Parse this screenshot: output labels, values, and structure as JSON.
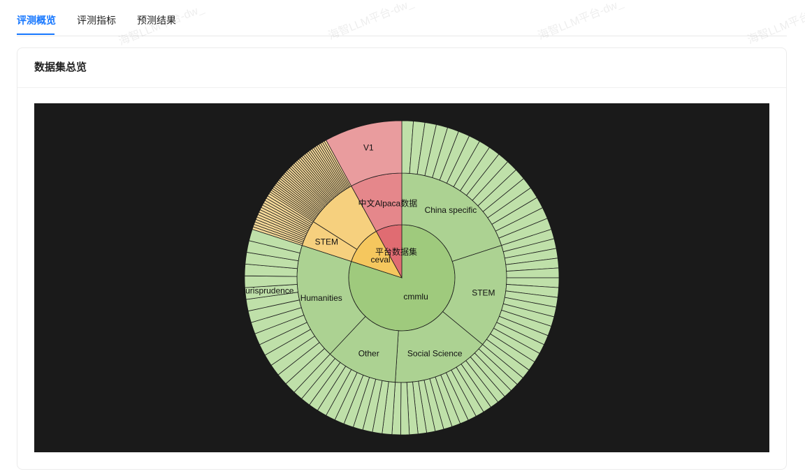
{
  "tabs": [
    {
      "label": "评测概览",
      "active": true
    },
    {
      "label": "评测指标",
      "active": false
    },
    {
      "label": "预测结果",
      "active": false
    }
  ],
  "card": {
    "title": "数据集总览"
  },
  "watermark": "海智LLM平台-dw_",
  "colors": {
    "accent": "#1677ff",
    "chart_bg": "#1a1a1a",
    "green_inner": "#9fca7d",
    "green_mid": "#acd292",
    "green_outer": "#bfe0a9",
    "yellow_inner": "#f5c75e",
    "yellow_mid": "#f6d07e",
    "yellow_outer": "#f7da99",
    "red_inner": "#e06c72",
    "red_mid": "#e5878b",
    "red_outer": "#e99c9e"
  },
  "chart_data": {
    "type": "sunburst",
    "root": "平台数据集",
    "children": [
      {
        "name": "cmmlu",
        "value": 80.0,
        "color": "green",
        "children": [
          {
            "name": "China specific",
            "value": 20.0,
            "leaves": 17
          },
          {
            "name": "STEM",
            "value": 16.0,
            "leaves": 16
          },
          {
            "name": "Social Science",
            "value": 15.0,
            "leaves": 17
          },
          {
            "name": "Other",
            "value": 11.0,
            "leaves": 11
          },
          {
            "name": "Humanities",
            "value": 18.0,
            "leaves": 15,
            "leaf_labels": {
              "9": "jurisprudence"
            }
          }
        ]
      },
      {
        "name": "ceval",
        "value": 12.0,
        "color": "yellow",
        "children": [
          {
            "name": "STEM",
            "value": 4.0,
            "leaves": 15
          },
          {
            "name": "",
            "value": 8.0,
            "leaves": 38
          }
        ]
      },
      {
        "name": "中文Alpaca数据",
        "value": 8.0,
        "color": "red",
        "children": [
          {
            "name": "中文Alpaca数据",
            "value": 8.0,
            "leaves": 1,
            "leaf_labels": {
              "0": "V1"
            }
          }
        ]
      }
    ]
  }
}
